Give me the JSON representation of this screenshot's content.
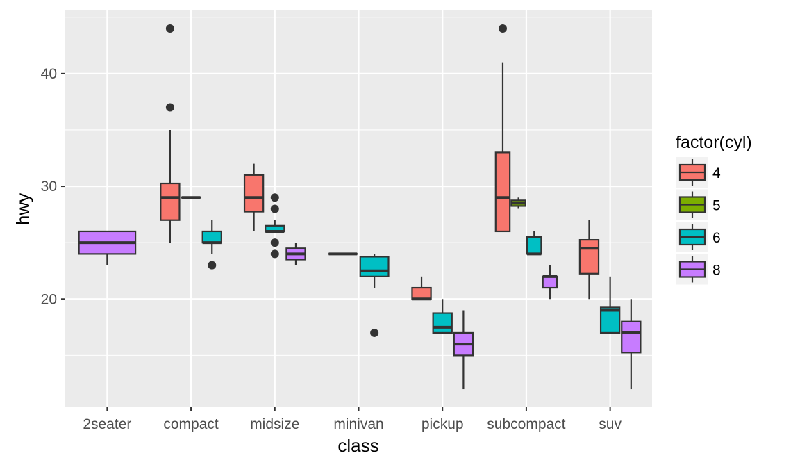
{
  "chart_data": {
    "type": "boxplot",
    "xlabel": "class",
    "ylabel": "hwy",
    "ylim": [
      10.4,
      45.6
    ],
    "y_ticks": [
      20,
      30,
      40
    ],
    "grid": true,
    "legend_position": "right",
    "categories": [
      "2seater",
      "compact",
      "midsize",
      "minivan",
      "pickup",
      "subcompact",
      "suv"
    ],
    "legend": {
      "title": "factor(cyl)",
      "entries": [
        {
          "label": "4",
          "color": "#F8766D"
        },
        {
          "label": "5",
          "color": "#7CAE00"
        },
        {
          "label": "6",
          "color": "#00BFC4"
        },
        {
          "label": "8",
          "color": "#C77CFF"
        }
      ]
    },
    "groups": [
      "4",
      "5",
      "6",
      "8"
    ],
    "boxes": [
      {
        "category": "2seater",
        "group": "8",
        "slot": 0,
        "slots": 1,
        "min": 23,
        "q1": 24,
        "median": 25,
        "q3": 26,
        "max": 26,
        "outliers": []
      },
      {
        "category": "compact",
        "group": "4",
        "slot": 0,
        "slots": 3,
        "min": 25,
        "q1": 27,
        "median": 29,
        "q3": 30.25,
        "max": 35,
        "outliers": [
          37,
          44
        ]
      },
      {
        "category": "compact",
        "group": "5",
        "slot": 1,
        "slots": 3,
        "min": 29,
        "q1": 29,
        "median": 29,
        "q3": 29,
        "max": 29,
        "outliers": []
      },
      {
        "category": "compact",
        "group": "6",
        "slot": 2,
        "slots": 3,
        "min": 24,
        "q1": 25,
        "median": 25,
        "q3": 26,
        "max": 27,
        "outliers": [
          23
        ]
      },
      {
        "category": "midsize",
        "group": "4",
        "slot": 0,
        "slots": 3,
        "min": 26,
        "q1": 27.75,
        "median": 29,
        "q3": 31,
        "max": 32,
        "outliers": []
      },
      {
        "category": "midsize",
        "group": "6",
        "slot": 1,
        "slots": 3,
        "min": 26,
        "q1": 26,
        "median": 26,
        "q3": 26.5,
        "max": 27,
        "outliers": [
          29,
          28,
          25,
          24
        ]
      },
      {
        "category": "midsize",
        "group": "8",
        "slot": 2,
        "slots": 3,
        "min": 23,
        "q1": 23.5,
        "median": 24,
        "q3": 24.5,
        "max": 25,
        "outliers": []
      },
      {
        "category": "minivan",
        "group": "4",
        "slot": 0,
        "slots": 2,
        "min": 24,
        "q1": 24,
        "median": 24,
        "q3": 24,
        "max": 24,
        "outliers": []
      },
      {
        "category": "minivan",
        "group": "6",
        "slot": 1,
        "slots": 2,
        "min": 21,
        "q1": 22,
        "median": 22.5,
        "q3": 23.75,
        "max": 24,
        "outliers": [
          17
        ]
      },
      {
        "category": "pickup",
        "group": "4",
        "slot": 0,
        "slots": 3,
        "min": 20,
        "q1": 20,
        "median": 20,
        "q3": 21,
        "max": 22,
        "outliers": []
      },
      {
        "category": "pickup",
        "group": "6",
        "slot": 1,
        "slots": 3,
        "min": 17,
        "q1": 17,
        "median": 17.5,
        "q3": 18.75,
        "max": 20,
        "outliers": []
      },
      {
        "category": "pickup",
        "group": "8",
        "slot": 2,
        "slots": 3,
        "min": 12,
        "q1": 15,
        "median": 16,
        "q3": 17,
        "max": 19,
        "outliers": []
      },
      {
        "category": "subcompact",
        "group": "4",
        "slot": 0,
        "slots": 4,
        "min": 26,
        "q1": 26,
        "median": 29,
        "q3": 33,
        "max": 41,
        "outliers": [
          44
        ]
      },
      {
        "category": "subcompact",
        "group": "5",
        "slot": 1,
        "slots": 4,
        "min": 28,
        "q1": 28.25,
        "median": 28.5,
        "q3": 28.75,
        "max": 29,
        "outliers": []
      },
      {
        "category": "subcompact",
        "group": "6",
        "slot": 2,
        "slots": 4,
        "min": 24,
        "q1": 24,
        "median": 24,
        "q3": 25.5,
        "max": 26,
        "outliers": []
      },
      {
        "category": "subcompact",
        "group": "8",
        "slot": 3,
        "slots": 4,
        "min": 20,
        "q1": 21,
        "median": 22,
        "q3": 22,
        "max": 23,
        "outliers": []
      },
      {
        "category": "suv",
        "group": "4",
        "slot": 0,
        "slots": 3,
        "min": 20,
        "q1": 22.25,
        "median": 24.5,
        "q3": 25.25,
        "max": 27,
        "outliers": []
      },
      {
        "category": "suv",
        "group": "6",
        "slot": 1,
        "slots": 3,
        "min": 17,
        "q1": 17,
        "median": 19,
        "q3": 19.25,
        "max": 22,
        "outliers": []
      },
      {
        "category": "suv",
        "group": "8",
        "slot": 2,
        "slots": 3,
        "min": 12,
        "q1": 15.25,
        "median": 17,
        "q3": 18,
        "max": 20,
        "outliers": []
      }
    ]
  }
}
